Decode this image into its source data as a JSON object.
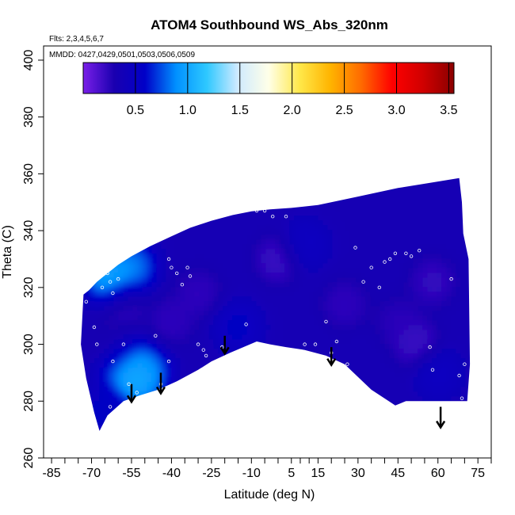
{
  "chart_data": {
    "type": "heatmap",
    "title": "ATOM4 Southbound WS_Abs_320nm",
    "annotations": {
      "flights": "Flts: 2,3,4,5,6,7",
      "dates": "MMDD: 0427,0429,0501,0503,0506,0509"
    },
    "xlabel": "Latitude (deg N)",
    "ylabel": "Theta (C)",
    "xlim": [
      -88,
      80
    ],
    "ylim": [
      260,
      405
    ],
    "x_ticks": [
      -85,
      -70,
      -55,
      -40,
      -25,
      -10,
      5,
      15,
      30,
      45,
      60,
      75
    ],
    "x_tick_labels": [
      "-85",
      "-70",
      "-55",
      "-40",
      "-25",
      "-10",
      "5",
      "15",
      "30",
      "45",
      "60",
      "75"
    ],
    "y_ticks": [
      260,
      280,
      300,
      320,
      340,
      360,
      380,
      400
    ],
    "y_tick_labels": [
      "260",
      "280",
      "300",
      "320",
      "340",
      "360",
      "380",
      "400"
    ],
    "colorbar": {
      "range": [
        0.0,
        3.55
      ],
      "ticks": [
        0.5,
        1.0,
        1.5,
        2.0,
        2.5,
        3.0,
        3.5
      ],
      "tick_labels": [
        "0.5",
        "1.0",
        "1.5",
        "2.0",
        "2.5",
        "3.0",
        "3.5"
      ],
      "colors": [
        "#7a1fe8",
        "#1a00b0",
        "#0000c8",
        "#0090ff",
        "#2ec8ff",
        "#cfeaff",
        "#ffffe8",
        "#ffe84a",
        "#ffb400",
        "#ff6a00",
        "#ff0000",
        "#d00000",
        "#8a0000"
      ]
    },
    "field": {
      "background_value": 0.35,
      "polygon": [
        [
          -73,
          317.5
        ],
        [
          -71,
          319
        ],
        [
          -68,
          322
        ],
        [
          -60,
          328
        ],
        [
          -55,
          331
        ],
        [
          -48,
          334.5
        ],
        [
          -40,
          338
        ],
        [
          -33,
          341
        ],
        [
          -25,
          343.5
        ],
        [
          -17,
          345.5
        ],
        [
          -10,
          346.8
        ],
        [
          -3,
          347.5
        ],
        [
          5,
          348
        ],
        [
          15,
          349
        ],
        [
          30,
          352
        ],
        [
          45,
          355
        ],
        [
          55,
          356.5
        ],
        [
          68,
          358.5
        ],
        [
          69,
          350
        ],
        [
          69.5,
          339
        ],
        [
          71.5,
          330
        ],
        [
          72,
          293
        ],
        [
          71,
          280
        ],
        [
          56,
          280
        ],
        [
          48,
          280
        ],
        [
          44,
          278.5
        ],
        [
          35,
          284
        ],
        [
          25,
          293
        ],
        [
          18,
          296
        ],
        [
          10,
          298
        ],
        [
          3,
          299
        ],
        [
          -3,
          300
        ],
        [
          -8,
          301
        ],
        [
          -13,
          299
        ],
        [
          -18,
          297
        ],
        [
          -25,
          294
        ],
        [
          -30,
          291
        ],
        [
          -38,
          287
        ],
        [
          -45,
          284
        ],
        [
          -52,
          282
        ],
        [
          -58,
          280
        ],
        [
          -64,
          275
        ],
        [
          -67,
          269.5
        ],
        [
          -69,
          276
        ],
        [
          -72,
          288
        ],
        [
          -74,
          300
        ]
      ],
      "blobs": [
        {
          "x": -58,
          "y": 293,
          "value": 1.0
        },
        {
          "x": -53,
          "y": 288,
          "value": 1.25
        },
        {
          "x": -50,
          "y": 291,
          "value": 0.95
        },
        {
          "x": -55,
          "y": 327,
          "value": 1.0
        },
        {
          "x": -63,
          "y": 323,
          "value": 1.2
        },
        {
          "x": -62,
          "y": 299,
          "value": 0.25
        },
        {
          "x": -58,
          "y": 314,
          "value": 0.2
        },
        {
          "x": -30,
          "y": 318,
          "value": 0.2
        },
        {
          "x": -40,
          "y": 308,
          "value": 0.2
        },
        {
          "x": 0,
          "y": 330,
          "value": 0.15
        },
        {
          "x": 25,
          "y": 314,
          "value": 0.2
        },
        {
          "x": 45,
          "y": 308,
          "value": 0.22
        },
        {
          "x": 58,
          "y": 322,
          "value": 0.18
        },
        {
          "x": 52,
          "y": 300,
          "value": 0.15
        },
        {
          "x": 10,
          "y": 335,
          "value": 0.55
        },
        {
          "x": -15,
          "y": 306,
          "value": 0.6
        },
        {
          "x": 60,
          "y": 290,
          "value": 0.55
        },
        {
          "x": -66,
          "y": 276,
          "value": 0.6
        }
      ]
    },
    "sample_points": [
      [
        -72,
        315
      ],
      [
        -69,
        306
      ],
      [
        -68,
        300
      ],
      [
        -66,
        320
      ],
      [
        -64,
        325
      ],
      [
        -63,
        322
      ],
      [
        -62,
        318
      ],
      [
        -60,
        323
      ],
      [
        -62,
        294
      ],
      [
        -58,
        300
      ],
      [
        -56,
        286
      ],
      [
        -53,
        283
      ],
      [
        -50,
        280
      ],
      [
        -47,
        279
      ],
      [
        -44,
        286
      ],
      [
        -41,
        330
      ],
      [
        -40,
        327
      ],
      [
        -38,
        325
      ],
      [
        -36,
        321
      ],
      [
        -34,
        327
      ],
      [
        -33,
        324
      ],
      [
        -30,
        300
      ],
      [
        -28,
        298
      ],
      [
        -27,
        296
      ],
      [
        -21,
        299
      ],
      [
        -12,
        307
      ],
      [
        -8,
        347
      ],
      [
        -5,
        347
      ],
      [
        -2,
        345
      ],
      [
        3,
        345
      ],
      [
        10,
        300
      ],
      [
        14,
        300
      ],
      [
        18,
        308
      ],
      [
        20,
        297
      ],
      [
        22,
        301
      ],
      [
        26,
        293
      ],
      [
        29,
        334
      ],
      [
        32,
        322
      ],
      [
        35,
        327
      ],
      [
        38,
        320
      ],
      [
        40,
        329
      ],
      [
        42,
        330
      ],
      [
        44,
        332
      ],
      [
        48,
        332
      ],
      [
        50,
        331
      ],
      [
        53,
        333
      ],
      [
        57,
        299
      ],
      [
        58,
        291
      ],
      [
        65,
        323
      ],
      [
        69,
        281
      ],
      [
        70,
        293
      ],
      [
        68,
        289
      ],
      [
        -63,
        278
      ],
      [
        -62,
        275
      ],
      [
        -59,
        277
      ],
      [
        -46,
        303
      ],
      [
        -41,
        294
      ]
    ],
    "arrows": [
      {
        "x": -55,
        "y_top": 286,
        "y_tip": 280
      },
      {
        "x": -44,
        "y_top": 290,
        "y_tip": 283
      },
      {
        "x": -20,
        "y_top": 303,
        "y_tip": 297
      },
      {
        "x": 20,
        "y_top": 299,
        "y_tip": 293
      },
      {
        "x": 61,
        "y_top": 278,
        "y_tip": 271
      }
    ]
  }
}
